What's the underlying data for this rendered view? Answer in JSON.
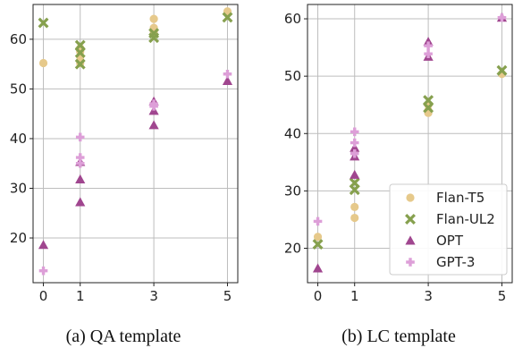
{
  "chart_data": [
    {
      "type": "scatter",
      "caption": "(a) QA template",
      "x_ticks": [
        0,
        1,
        3,
        5
      ],
      "y_ticks": [
        20,
        30,
        40,
        50,
        60
      ],
      "xlim": [
        -0.28,
        5.28
      ],
      "ylim": [
        11,
        67
      ],
      "grid": true,
      "series": [
        {
          "name": "Flan-T5",
          "color": "#e6c98b",
          "marker": "circle",
          "points": [
            [
              0,
              55.2
            ],
            [
              1,
              58.2
            ],
            [
              1,
              57.5
            ],
            [
              1,
              56.5
            ],
            [
              1,
              55.2
            ],
            [
              3,
              64.1
            ],
            [
              3,
              62.3
            ],
            [
              3,
              61.5
            ],
            [
              5,
              65.6
            ]
          ]
        },
        {
          "name": "Flan-UL2",
          "color": "#86a04e",
          "marker": "x",
          "points": [
            [
              0,
              63.3
            ],
            [
              1,
              58.8
            ],
            [
              1,
              57.3
            ],
            [
              1,
              55.0
            ],
            [
              3,
              61.2
            ],
            [
              3,
              60.3
            ],
            [
              5,
              64.4
            ]
          ]
        },
        {
          "name": "OPT",
          "color": "#a0468f",
          "marker": "triangle",
          "points": [
            [
              0,
              18.6
            ],
            [
              1,
              35.3
            ],
            [
              1,
              31.8
            ],
            [
              1,
              27.2
            ],
            [
              3,
              47.5
            ],
            [
              3,
              45.6
            ],
            [
              3,
              42.7
            ],
            [
              5,
              51.6
            ]
          ]
        },
        {
          "name": "GPT-3",
          "color": "#dd9fd8",
          "marker": "plus",
          "points": [
            [
              0,
              13.4
            ],
            [
              1,
              40.3
            ],
            [
              1,
              36.2
            ],
            [
              1,
              35.0
            ],
            [
              3,
              47.0
            ],
            [
              3,
              46.5
            ],
            [
              5,
              53.0
            ]
          ]
        }
      ]
    },
    {
      "type": "scatter",
      "caption": "(b) LC template",
      "x_ticks": [
        0,
        1,
        3,
        5
      ],
      "y_ticks": [
        20,
        30,
        40,
        50,
        60
      ],
      "xlim": [
        -0.28,
        5.28
      ],
      "ylim": [
        14,
        62.5
      ],
      "grid": true,
      "legend": {
        "position": "bottom-right",
        "entries": [
          "Flan-T5",
          "Flan-UL2",
          "OPT",
          "GPT-3"
        ]
      },
      "series": [
        {
          "name": "Flan-T5",
          "color": "#e6c98b",
          "marker": "circle",
          "points": [
            [
              0,
              22.0
            ],
            [
              1,
              27.2
            ],
            [
              1,
              25.3
            ],
            [
              3,
              45.0
            ],
            [
              3,
              44.0
            ],
            [
              3,
              43.6
            ],
            [
              5,
              50.4
            ]
          ]
        },
        {
          "name": "Flan-UL2",
          "color": "#86a04e",
          "marker": "x",
          "points": [
            [
              0,
              20.7
            ],
            [
              1,
              31.4
            ],
            [
              1,
              30.2
            ],
            [
              3,
              45.8
            ],
            [
              3,
              44.5
            ],
            [
              5,
              51.0
            ]
          ]
        },
        {
          "name": "OPT",
          "color": "#a0468f",
          "marker": "triangle",
          "points": [
            [
              0,
              16.5
            ],
            [
              1,
              37.5
            ],
            [
              1,
              36.0
            ],
            [
              1,
              32.8
            ],
            [
              3,
              56.0
            ],
            [
              3,
              53.4
            ],
            [
              5,
              60.2
            ]
          ]
        },
        {
          "name": "GPT-3",
          "color": "#dd9fd8",
          "marker": "plus",
          "points": [
            [
              0,
              24.7
            ],
            [
              1,
              40.3
            ],
            [
              1,
              38.4
            ],
            [
              1,
              36.5
            ],
            [
              3,
              55.3
            ],
            [
              3,
              53.9
            ],
            [
              5,
              60.2
            ]
          ]
        }
      ]
    }
  ]
}
